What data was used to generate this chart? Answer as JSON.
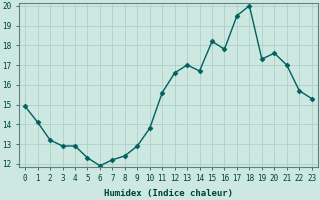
{
  "xlabel": "Humidex (Indice chaleur)",
  "ylabel": "",
  "x": [
    0,
    1,
    2,
    3,
    4,
    5,
    6,
    7,
    8,
    9,
    10,
    11,
    12,
    13,
    14,
    15,
    16,
    17,
    18,
    19,
    20,
    21,
    22,
    23
  ],
  "y": [
    14.9,
    14.1,
    13.2,
    12.9,
    12.9,
    12.3,
    11.9,
    12.2,
    12.4,
    12.9,
    13.8,
    15.6,
    16.6,
    17.0,
    16.7,
    18.2,
    17.8,
    19.5,
    20.0,
    17.3,
    17.6,
    17.0,
    15.7,
    15.3
  ],
  "line_color": "#006060",
  "marker_color": "#006060",
  "background_color": "#cce8e0",
  "grid_color": "#a8ccc4",
  "ylim": [
    12,
    20
  ],
  "xlim": [
    -0.5,
    23.5
  ],
  "yticks": [
    12,
    13,
    14,
    15,
    16,
    17,
    18,
    19,
    20
  ],
  "xticks": [
    0,
    1,
    2,
    3,
    4,
    5,
    6,
    7,
    8,
    9,
    10,
    11,
    12,
    13,
    14,
    15,
    16,
    17,
    18,
    19,
    20,
    21,
    22,
    23
  ],
  "tick_fontsize": 5.5,
  "xlabel_fontsize": 6.5,
  "marker_size": 2.5,
  "line_width": 1.0
}
